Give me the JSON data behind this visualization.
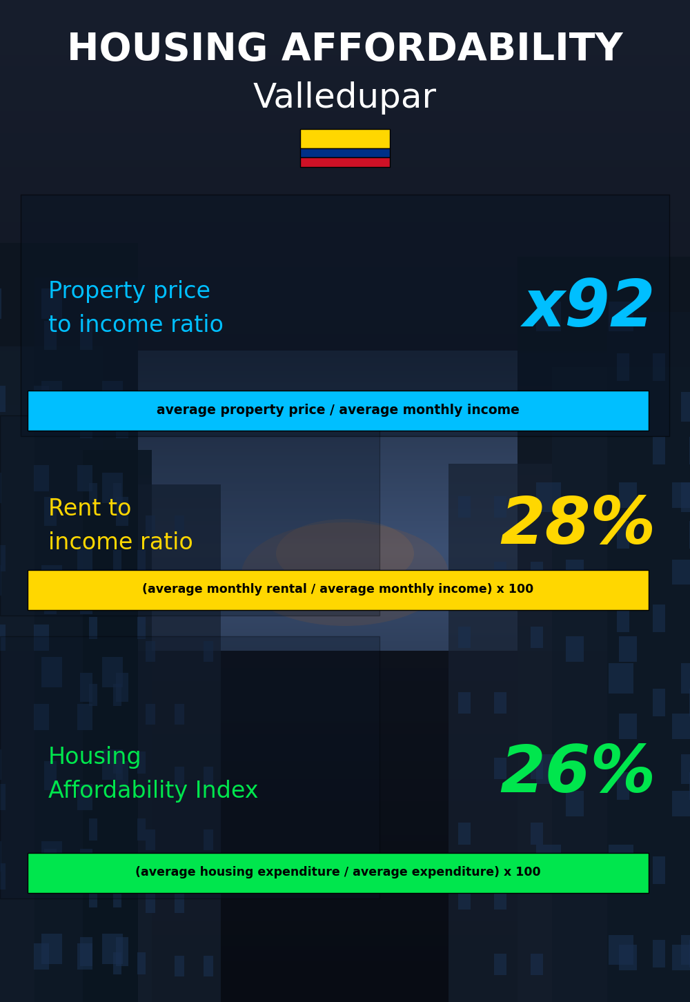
{
  "title_line1": "HOUSING AFFORDABILITY",
  "title_line2": "Valledupar",
  "bg_color": "#060c14",
  "title_color": "#ffffff",
  "city_color": "#ffffff",
  "section1_label": "Property price\nto income ratio",
  "section1_value": "x92",
  "section1_label_color": "#00bfff",
  "section1_value_color": "#00bfff",
  "section1_formula": "average property price / average monthly income",
  "section1_formula_bg": "#00bfff",
  "section1_formula_color": "#000000",
  "section2_label": "Rent to\nincome ratio",
  "section2_value": "28%",
  "section2_label_color": "#FFD700",
  "section2_value_color": "#FFD700",
  "section2_formula": "(average monthly rental / average monthly income) x 100",
  "section2_formula_bg": "#FFD700",
  "section2_formula_color": "#000000",
  "section3_label": "Housing\nAffordability Index",
  "section3_value": "26%",
  "section3_label_color": "#00e64d",
  "section3_value_color": "#00e64d",
  "section3_formula": "(average housing expenditure / average expenditure) x 100",
  "section3_formula_bg": "#00e64d",
  "section3_formula_color": "#000000",
  "flag_yellow": "#FFD700",
  "flag_blue": "#003087",
  "flag_red": "#CE1126"
}
